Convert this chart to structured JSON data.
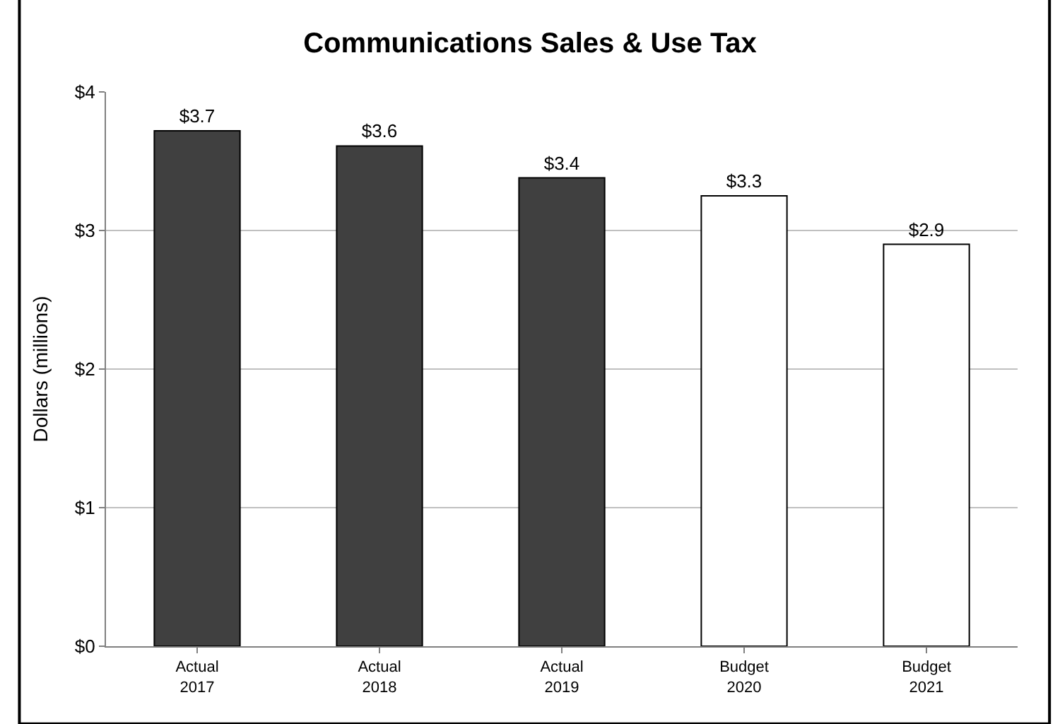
{
  "chart_data": {
    "type": "bar",
    "title": "Communications Sales & Use Tax",
    "ylabel": "Dollars (millions)",
    "categories": [
      "Actual\n2017",
      "Actual\n2018",
      "Actual\n2019",
      "Budget\n2020",
      "Budget\n2021"
    ],
    "values": [
      3.72,
      3.61,
      3.38,
      3.25,
      2.9
    ],
    "value_labels": [
      "$3.7",
      "$3.6",
      "$3.4",
      "$3.3",
      "$2.9"
    ],
    "colors": [
      "#404040",
      "#404040",
      "#404040",
      "#ffffff",
      "#ffffff"
    ],
    "ylim": [
      0,
      4
    ],
    "yticks": [
      {
        "value": 0,
        "label": "$0"
      },
      {
        "value": 1,
        "label": "$1"
      },
      {
        "value": 2,
        "label": "$2"
      },
      {
        "value": 3,
        "label": "$3"
      },
      {
        "value": 4,
        "label": "$4"
      }
    ],
    "grid": "y"
  }
}
